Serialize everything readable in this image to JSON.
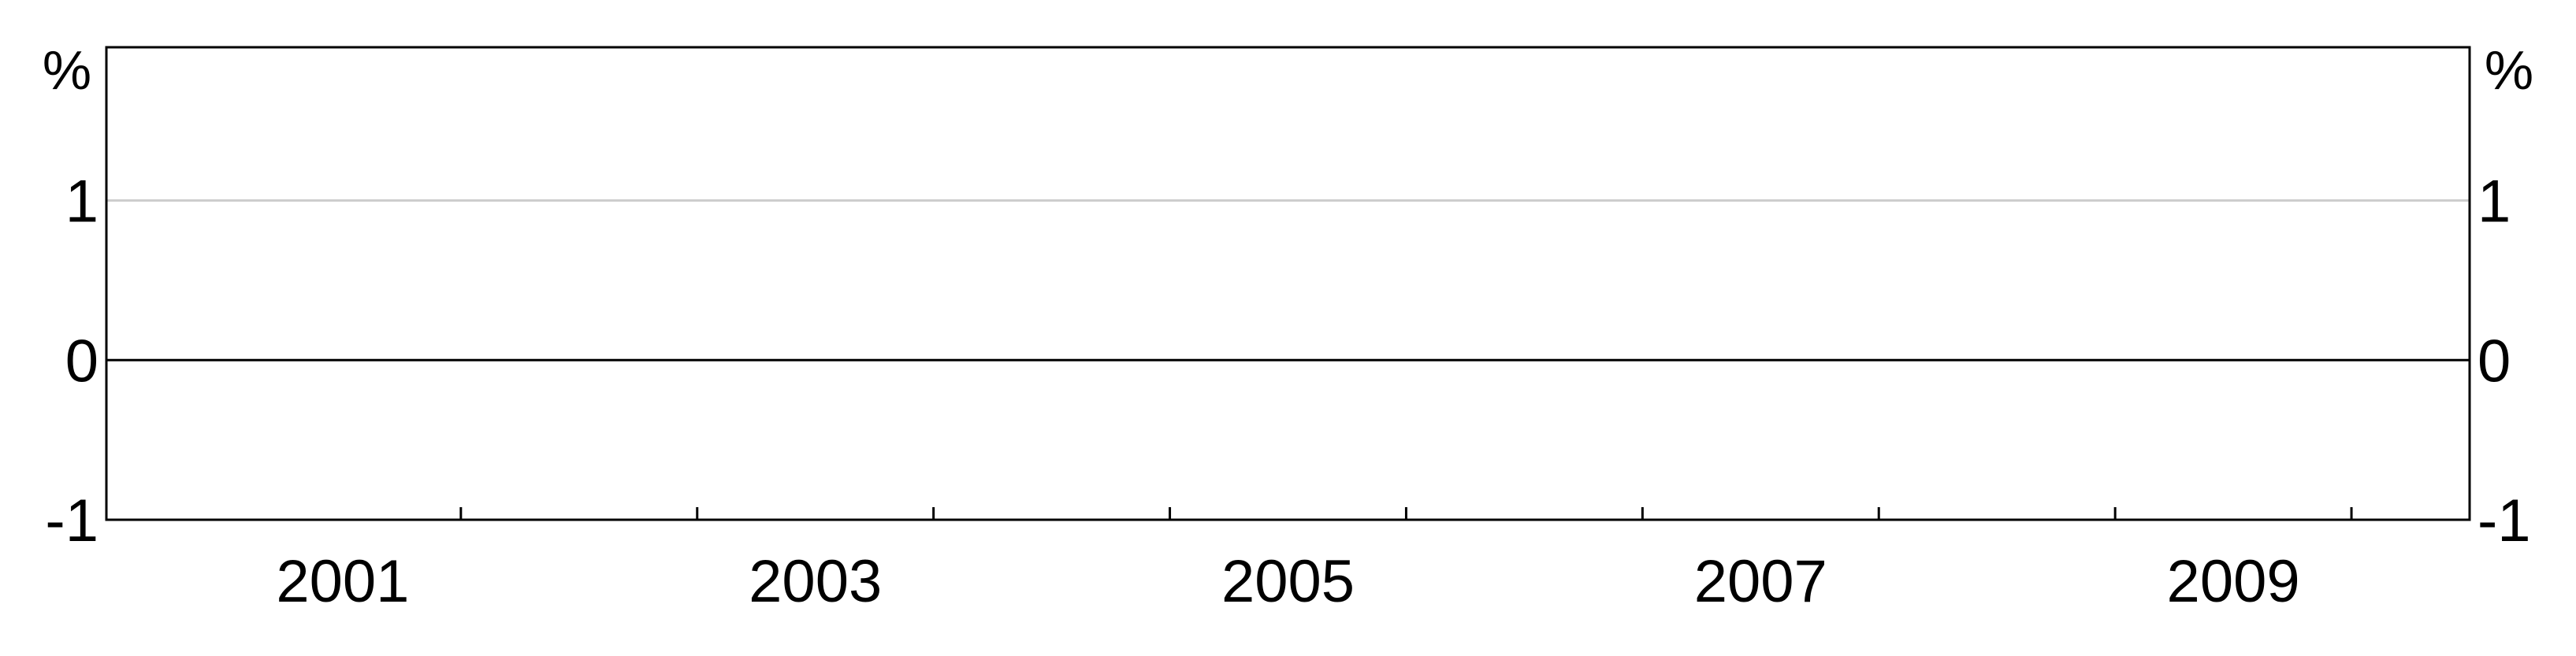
{
  "chart_data": {
    "type": "line",
    "title": "",
    "xlabel": "",
    "ylabel": "%",
    "y2label": "%",
    "xlim": [
      2000.0,
      2010.0
    ],
    "ylim": [
      -1,
      1.96
    ],
    "y_ticks": [
      {
        "value": 1,
        "label": "1"
      },
      {
        "value": 0,
        "label": "0"
      },
      {
        "value": -1,
        "label": "-1"
      }
    ],
    "x_major_ticks": [
      2001,
      2003,
      2005,
      2007,
      2009
    ],
    "x_tick_labels": [
      "2001",
      "2003",
      "2005",
      "2007",
      "2009"
    ],
    "x_minor_ticks": [
      2001,
      2002,
      2003,
      2004,
      2005,
      2006,
      2007,
      2008,
      2009
    ],
    "grid": {
      "y": true,
      "x": false
    },
    "reference_line": 0,
    "series": []
  }
}
